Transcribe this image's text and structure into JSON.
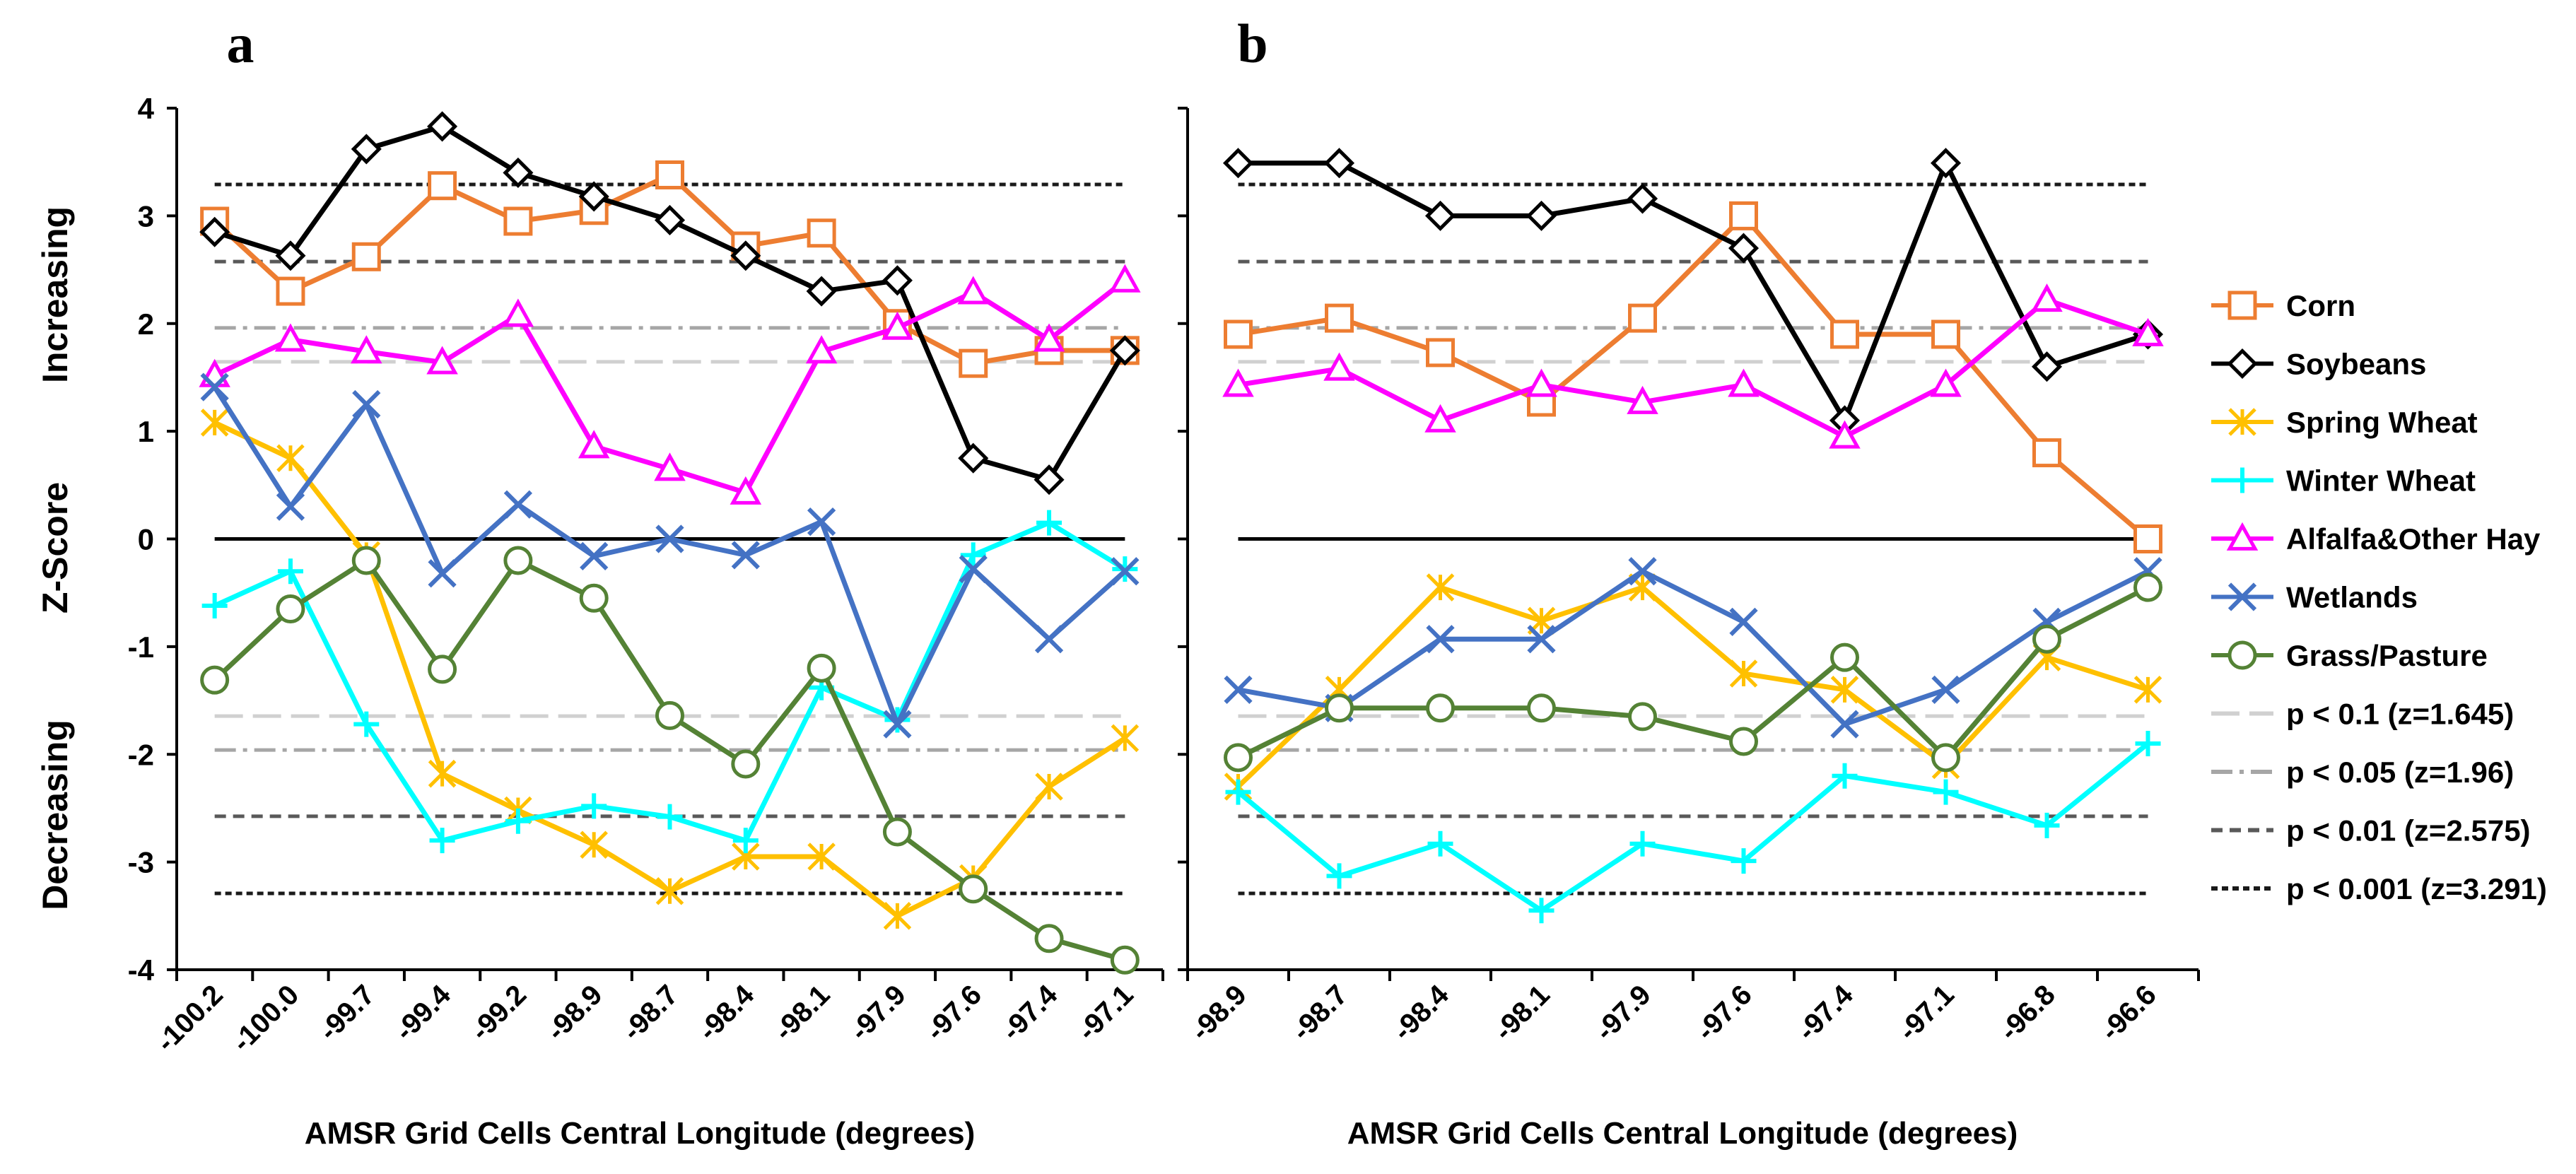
{
  "figure": {
    "side_labels": {
      "increasing": "Increasing",
      "zscore": "Z-Score",
      "decreasing": "Decreasing"
    }
  },
  "colors": {
    "Corn": "#ED7D31",
    "Soybeans": "#000000",
    "Spring Wheat": "#FFC000",
    "Winter Wheat": "#00FFFF",
    "Alfalfa&Other Hay": "#FF00FF",
    "Wetlands": "#4472C4",
    "Grass/Pasture": "#548235"
  },
  "legend": [
    {
      "label": "Corn",
      "color": "#ED7D31",
      "marker": "square",
      "line": "solid"
    },
    {
      "label": "Soybeans",
      "color": "#000000",
      "marker": "diamond",
      "line": "solid"
    },
    {
      "label": "Spring Wheat",
      "color": "#FFC000",
      "marker": "star",
      "line": "solid"
    },
    {
      "label": "Winter Wheat",
      "color": "#00FFFF",
      "marker": "plus",
      "line": "solid"
    },
    {
      "label": "Alfalfa&Other Hay",
      "color": "#FF00FF",
      "marker": "triangle",
      "line": "solid"
    },
    {
      "label": "Wetlands",
      "color": "#4472C4",
      "marker": "x",
      "line": "solid"
    },
    {
      "label": "Grass/Pasture",
      "color": "#548235",
      "marker": "circle",
      "line": "solid"
    },
    {
      "label": "p < 0.1 (z=1.645)",
      "color": "#D0D0D0",
      "marker": "none",
      "line": "longdash"
    },
    {
      "label": "p < 0.05 (z=1.96)",
      "color": "#A6A6A6",
      "marker": "none",
      "line": "dashdot"
    },
    {
      "label": "p < 0.01 (z=2.575)",
      "color": "#595959",
      "marker": "none",
      "line": "dash"
    },
    {
      "label": "p < 0.001 (z=3.291)",
      "color": "#1A1A1A",
      "marker": "none",
      "line": "shortdash"
    }
  ],
  "chart_data": [
    {
      "panel": "a",
      "type": "line",
      "xlabel": "AMSR Grid Cells Central Longitude (degrees)",
      "ylabel": "Z-Score",
      "ylim": [
        -4,
        4
      ],
      "yticks": [
        -4,
        -3,
        -2,
        -1,
        0,
        1,
        2,
        3,
        4
      ],
      "categories": [
        "-100.2",
        "-100.0",
        "-99.7",
        "-99.4",
        "-99.2",
        "-98.9",
        "-98.7",
        "-98.4",
        "-98.1",
        "-97.9",
        "-97.6",
        "-97.4",
        "-97.1"
      ],
      "series": [
        {
          "name": "Corn",
          "values": [
            2.95,
            2.3,
            2.62,
            3.28,
            2.95,
            3.05,
            3.38,
            2.72,
            2.84,
            2.0,
            1.63,
            1.75,
            1.75
          ]
        },
        {
          "name": "Soybeans",
          "values": [
            2.85,
            2.63,
            3.62,
            3.83,
            3.4,
            3.18,
            2.96,
            2.63,
            2.3,
            2.4,
            0.75,
            0.55,
            1.75
          ]
        },
        {
          "name": "Spring Wheat",
          "values": [
            1.08,
            0.75,
            -0.15,
            -2.18,
            -2.52,
            -2.84,
            -3.27,
            -2.95,
            -2.95,
            -3.5,
            -3.15,
            -2.3,
            -1.85
          ]
        },
        {
          "name": "Winter Wheat",
          "values": [
            -0.62,
            -0.3,
            -1.72,
            -2.8,
            -2.62,
            -2.48,
            -2.58,
            -2.8,
            -1.38,
            -1.68,
            -0.15,
            0.15,
            -0.28
          ]
        },
        {
          "name": "Alfalfa&Other Hay",
          "values": [
            1.52,
            1.85,
            1.74,
            1.64,
            2.08,
            0.86,
            0.65,
            0.43,
            1.74,
            1.96,
            2.29,
            1.85,
            2.4
          ]
        },
        {
          "name": "Wetlands",
          "values": [
            1.41,
            0.3,
            1.25,
            -0.32,
            0.32,
            -0.16,
            0.0,
            -0.15,
            0.16,
            -1.72,
            -0.28,
            -0.93,
            -0.3
          ]
        },
        {
          "name": "Grass/Pasture",
          "values": [
            -1.31,
            -0.65,
            -0.2,
            -1.21,
            -0.2,
            -0.55,
            -1.64,
            -2.09,
            -1.2,
            -2.72,
            -3.25,
            -3.71,
            -3.91
          ]
        }
      ],
      "reference_lines": [
        {
          "name": "p < 0.1 (z=1.645)",
          "values": [
            1.645,
            -1.645
          ]
        },
        {
          "name": "p < 0.05 (z=1.96)",
          "values": [
            1.96,
            -1.96
          ]
        },
        {
          "name": "p < 0.01 (z=2.575)",
          "values": [
            2.575,
            -2.575
          ]
        },
        {
          "name": "p < 0.001 (z=3.291)",
          "values": [
            3.291,
            -3.291
          ]
        },
        {
          "name": "zero",
          "values": [
            0
          ]
        }
      ]
    },
    {
      "panel": "b",
      "type": "line",
      "xlabel": "AMSR Grid Cells Central Longitude (degrees)",
      "ylim": [
        -4,
        4
      ],
      "categories": [
        "-98.9",
        "-98.7",
        "-98.4",
        "-98.1",
        "-97.9",
        "-97.6",
        "-97.4",
        "-97.1",
        "-96.8",
        "-96.6"
      ],
      "series": [
        {
          "name": "Corn",
          "values": [
            1.9,
            2.05,
            1.73,
            1.27,
            2.05,
            3.0,
            1.9,
            1.9,
            0.8,
            0.0
          ]
        },
        {
          "name": "Soybeans",
          "values": [
            3.49,
            3.49,
            3.0,
            3.0,
            3.16,
            2.7,
            1.1,
            3.49,
            1.6,
            1.9
          ]
        },
        {
          "name": "Spring Wheat",
          "values": [
            -2.3,
            -1.4,
            -0.45,
            -0.76,
            -0.45,
            -1.25,
            -1.4,
            -2.1,
            -1.1,
            -1.4
          ]
        },
        {
          "name": "Winter Wheat",
          "values": [
            -2.35,
            -3.13,
            -2.83,
            -3.45,
            -2.83,
            -2.99,
            -2.2,
            -2.35,
            -2.66,
            -1.9
          ]
        },
        {
          "name": "Alfalfa&Other Hay",
          "values": [
            1.43,
            1.58,
            1.1,
            1.43,
            1.27,
            1.43,
            0.95,
            1.43,
            2.22,
            1.9
          ]
        },
        {
          "name": "Wetlands",
          "values": [
            -1.4,
            -1.57,
            -0.93,
            -0.93,
            -0.3,
            -0.77,
            -1.72,
            -1.4,
            -0.77,
            -0.3
          ]
        },
        {
          "name": "Grass/Pasture",
          "values": [
            -2.03,
            -1.57,
            -1.57,
            -1.57,
            -1.65,
            -1.88,
            -1.1,
            -2.03,
            -0.93,
            -0.45
          ]
        }
      ],
      "reference_lines": [
        {
          "name": "p < 0.1 (z=1.645)",
          "values": [
            1.645,
            -1.645
          ]
        },
        {
          "name": "p < 0.05 (z=1.96)",
          "values": [
            1.96,
            -1.96
          ]
        },
        {
          "name": "p < 0.01 (z=2.575)",
          "values": [
            2.575,
            -2.575
          ]
        },
        {
          "name": "p < 0.001 (z=3.291)",
          "values": [
            3.291,
            -3.291
          ]
        },
        {
          "name": "zero",
          "values": [
            0
          ]
        }
      ]
    }
  ]
}
